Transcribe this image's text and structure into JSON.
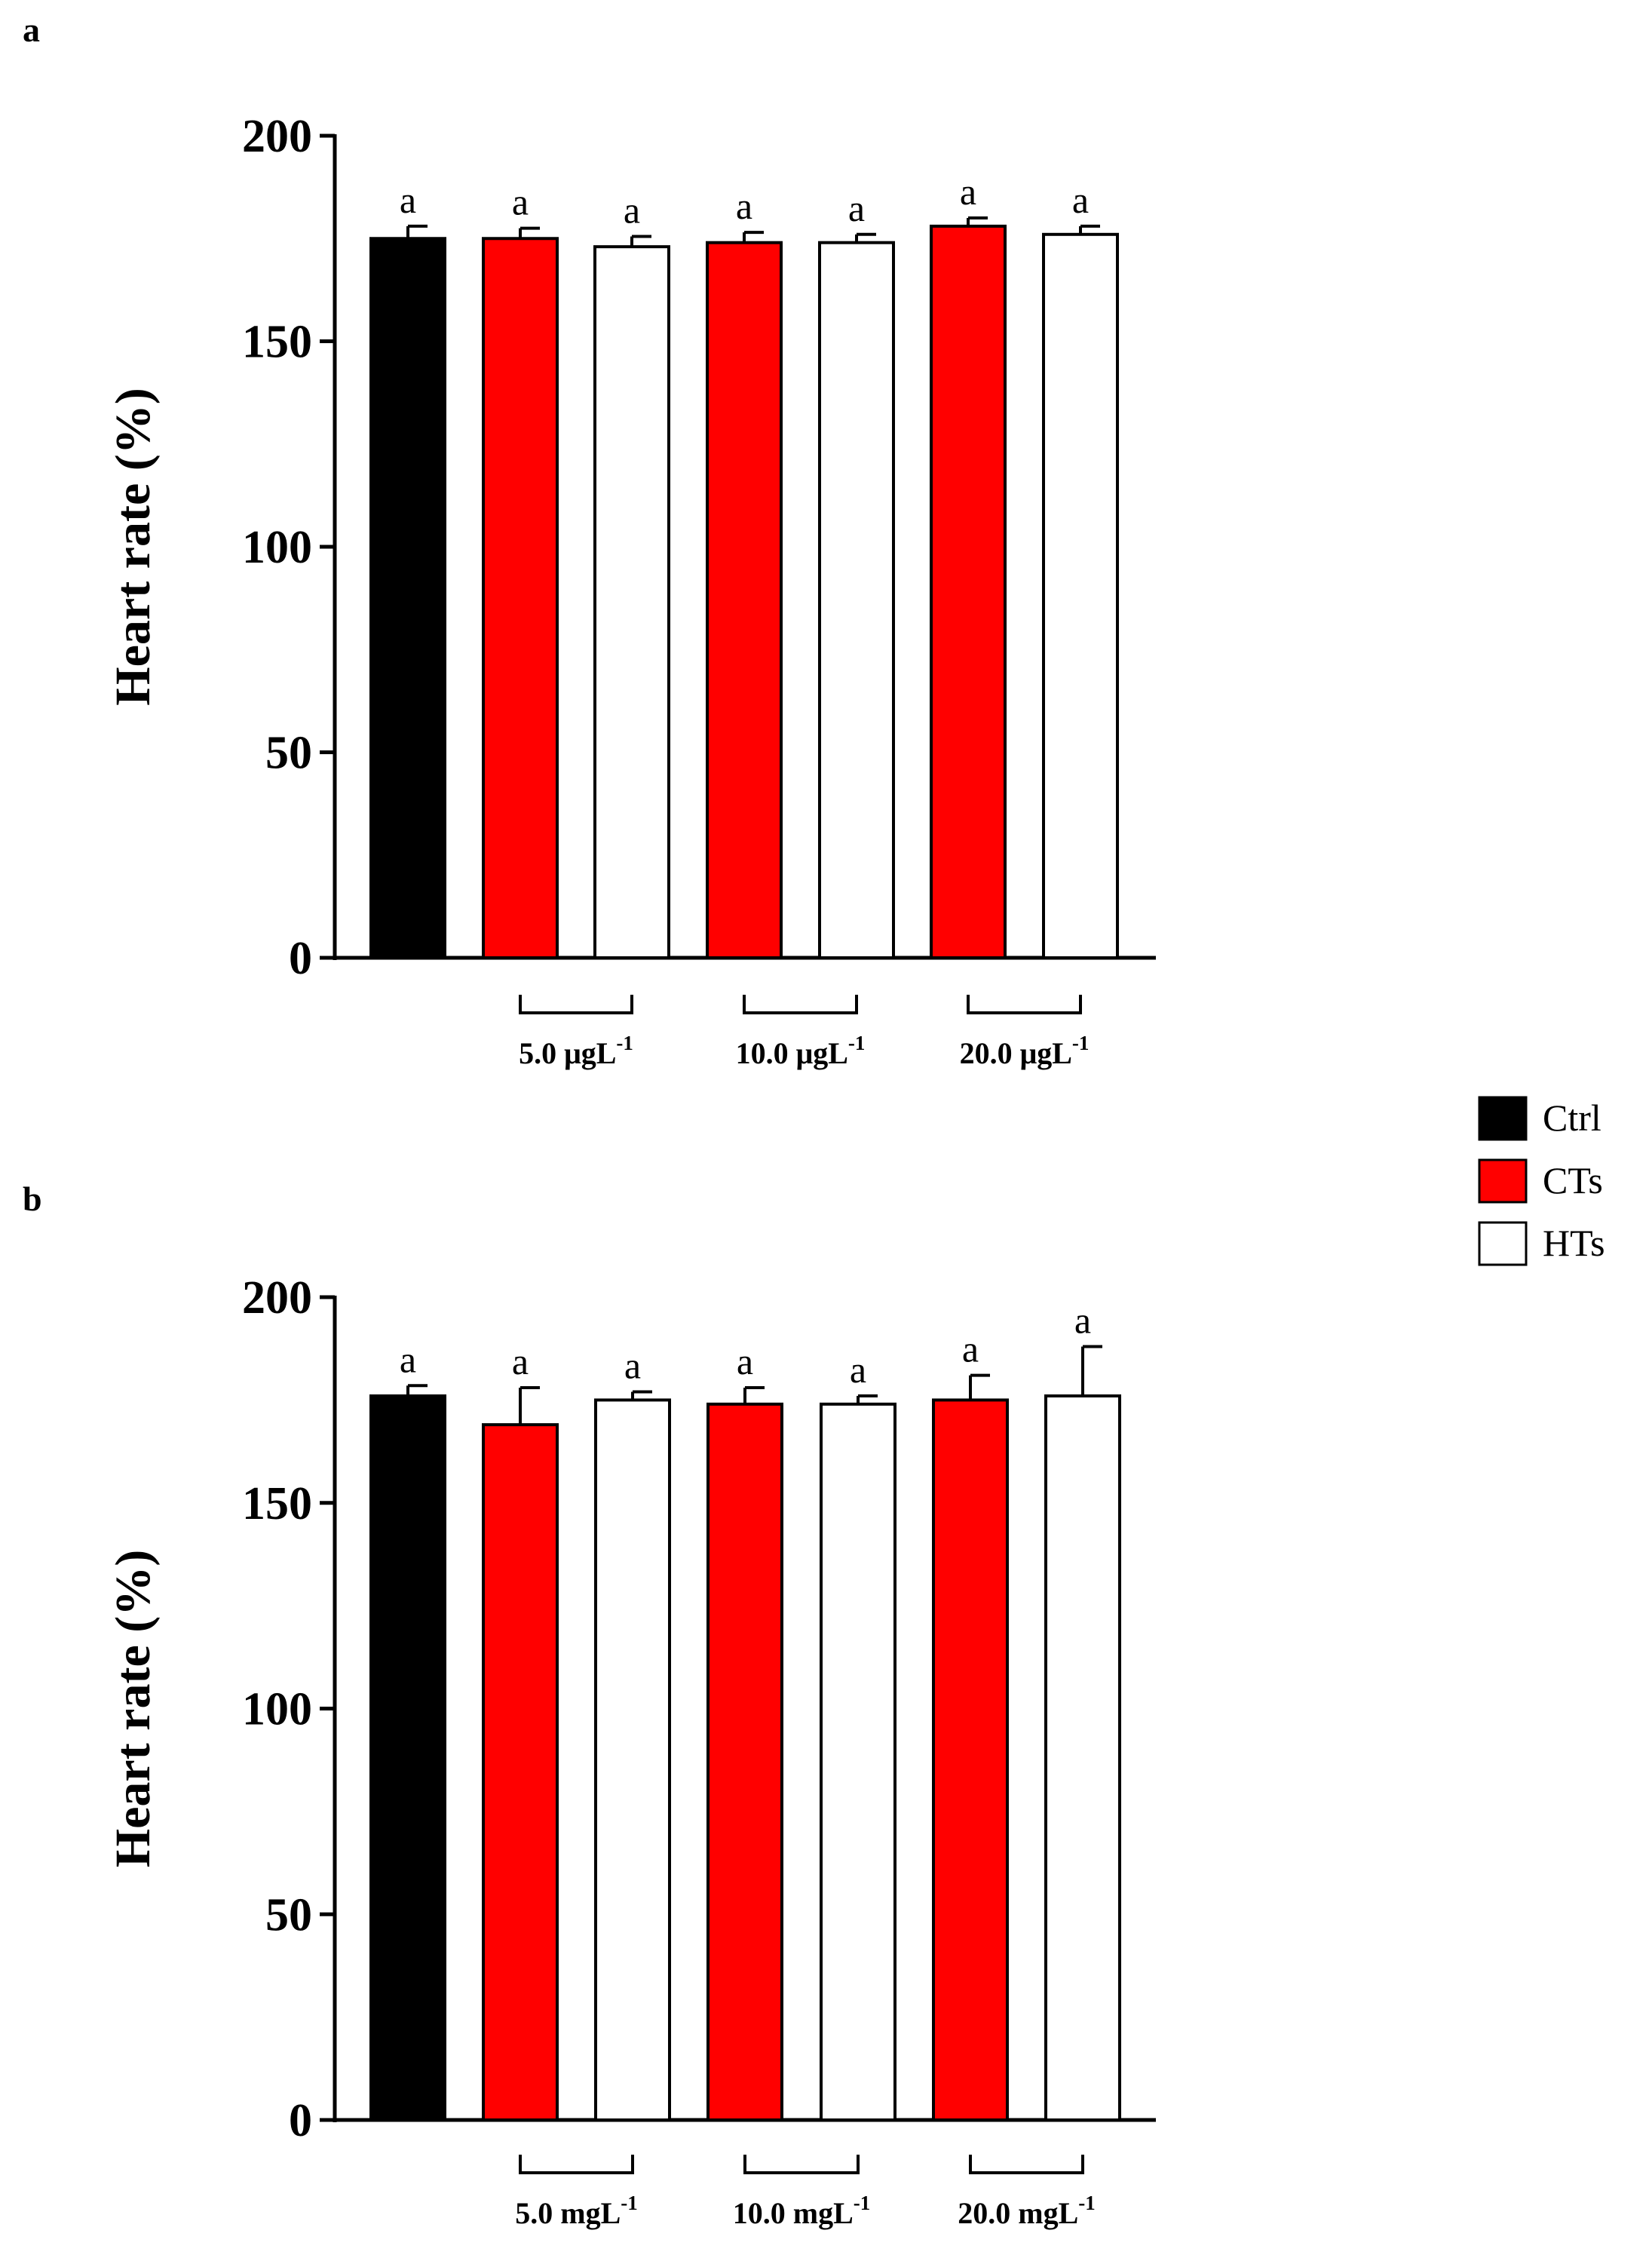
{
  "legend": {
    "placement": "right",
    "items": [
      {
        "label": "Ctrl",
        "color": "#000000"
      },
      {
        "label": "CTs",
        "color": "#ff0000"
      },
      {
        "label": "HTs",
        "color": "#ffffff"
      }
    ]
  },
  "chart_data": [
    {
      "type": "bar",
      "panel": "a",
      "ylabel": "Heart rate (%)",
      "ylim": [
        0,
        200
      ],
      "yticks": [
        "0",
        "50",
        "100",
        "150",
        "200"
      ],
      "bars": [
        {
          "series": "Ctrl",
          "group": "",
          "value": 175,
          "error": 3,
          "sig": "a"
        },
        {
          "series": "CTs",
          "group": "5.0 μgL-1",
          "value": 175,
          "error": 2.5,
          "sig": "a"
        },
        {
          "series": "HTs",
          "group": "5.0 μgL-1",
          "value": 173,
          "error": 2.5,
          "sig": "a"
        },
        {
          "series": "CTs",
          "group": "10.0 μgL-1",
          "value": 174,
          "error": 2.5,
          "sig": "a"
        },
        {
          "series": "HTs",
          "group": "10.0 μgL-1",
          "value": 174,
          "error": 2,
          "sig": "a"
        },
        {
          "series": "CTs",
          "group": "20.0 μgL-1",
          "value": 178,
          "error": 2,
          "sig": "a"
        },
        {
          "series": "HTs",
          "group": "20.0 μgL-1",
          "value": 176,
          "error": 2,
          "sig": "a"
        }
      ],
      "groups": [
        {
          "text": "5.0 μgL",
          "sup": "-1"
        },
        {
          "text": "10.0 μgL",
          "sup": "-1"
        },
        {
          "text": "20.0 μgL",
          "sup": "-1"
        }
      ]
    },
    {
      "type": "bar",
      "panel": "b",
      "ylabel": "Heart rate (%)",
      "ylim": [
        0,
        200
      ],
      "yticks": [
        "0",
        "50",
        "100",
        "150",
        "200"
      ],
      "bars": [
        {
          "series": "Ctrl",
          "group": "",
          "value": 176,
          "error": 2.5,
          "sig": "a"
        },
        {
          "series": "CTs",
          "group": "5.0 mgL-1",
          "value": 169,
          "error": 9,
          "sig": "a"
        },
        {
          "series": "HTs",
          "group": "5.0 mgL-1",
          "value": 175,
          "error": 2,
          "sig": "a"
        },
        {
          "series": "CTs",
          "group": "10.0 mgL-1",
          "value": 174,
          "error": 4,
          "sig": "a"
        },
        {
          "series": "HTs",
          "group": "10.0 mgL-1",
          "value": 174,
          "error": 2,
          "sig": "a"
        },
        {
          "series": "CTs",
          "group": "20.0 mgL-1",
          "value": 175,
          "error": 6,
          "sig": "a"
        },
        {
          "series": "HTs",
          "group": "20.0 mgL-1",
          "value": 176,
          "error": 12,
          "sig": "a"
        }
      ],
      "groups": [
        {
          "text": "5.0 mgL",
          "sup": "-1"
        },
        {
          "text": "10.0 mgL",
          "sup": "-1"
        },
        {
          "text": "20.0 mgL",
          "sup": "-1"
        }
      ]
    }
  ]
}
